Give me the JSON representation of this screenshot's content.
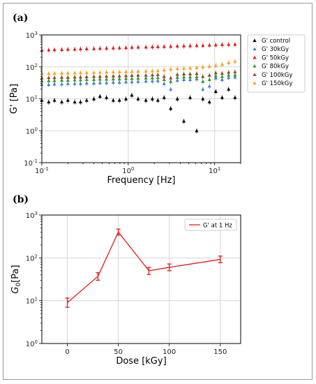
{
  "panel_a_label": "(a)",
  "panel_b_label": "(b)",
  "chart_data": [
    {
      "type": "scatter",
      "xlabel": "Frequency [Hz]",
      "ylabel": "G' [Pa]",
      "xscale": "log",
      "yscale": "log",
      "xlim": [
        0.1,
        20
      ],
      "ylim": [
        0.1,
        1000
      ],
      "xticks": [
        "10^-1",
        "10^0",
        "10^1"
      ],
      "yticks": [
        "10^-1",
        "10^0",
        "10^1",
        "10^2",
        "10^3"
      ],
      "grid": true,
      "legend_position": "right-outside",
      "series": [
        {
          "name": "G' control",
          "color": "#000000",
          "marker": "triangle",
          "x": [
            0.1,
            0.12,
            0.14,
            0.17,
            0.2,
            0.24,
            0.28,
            0.33,
            0.4,
            0.47,
            0.56,
            0.67,
            0.79,
            0.94,
            1.1,
            1.3,
            1.6,
            1.9,
            2.2,
            2.6,
            3.1,
            3.7,
            4.4,
            5.2,
            6.2,
            7.3,
            8.7,
            10.3,
            12.2,
            14.5,
            17.2
          ],
          "y": [
            9,
            8,
            9,
            8,
            9,
            8,
            8,
            9,
            10,
            12,
            11,
            9,
            9,
            10,
            13,
            10,
            9,
            10,
            9,
            11,
            5,
            10,
            2,
            11,
            1,
            10,
            8,
            17,
            11,
            20,
            11
          ]
        },
        {
          "name": "G' 30kGy",
          "color": "#4a7fd4",
          "marker": "triangle",
          "x": [
            0.1,
            0.12,
            0.14,
            0.17,
            0.2,
            0.24,
            0.28,
            0.33,
            0.4,
            0.47,
            0.56,
            0.67,
            0.79,
            0.94,
            1.1,
            1.3,
            1.6,
            1.9,
            2.2,
            2.6,
            3.1,
            3.7,
            4.4,
            5.2,
            6.2,
            7.3,
            8.7,
            10.3,
            12.2,
            14.5,
            17.2
          ],
          "y": [
            28,
            28,
            29,
            29,
            30,
            30,
            30,
            31,
            31,
            32,
            32,
            33,
            33,
            34,
            34,
            35,
            36,
            36,
            37,
            30,
            20,
            38,
            40,
            40,
            42,
            20,
            25,
            45,
            40,
            46,
            48
          ]
        },
        {
          "name": "G' 50kGy",
          "color": "#e41a1c",
          "marker": "triangle",
          "x": [
            0.1,
            0.12,
            0.14,
            0.17,
            0.2,
            0.24,
            0.28,
            0.33,
            0.4,
            0.47,
            0.56,
            0.67,
            0.79,
            0.94,
            1.1,
            1.3,
            1.6,
            1.9,
            2.2,
            2.6,
            3.1,
            3.7,
            4.4,
            5.2,
            6.2,
            7.3,
            8.7,
            10.3,
            12.2,
            14.5,
            17.2
          ],
          "y": [
            330,
            340,
            345,
            350,
            355,
            360,
            365,
            370,
            375,
            380,
            385,
            390,
            395,
            400,
            410,
            415,
            420,
            425,
            430,
            435,
            440,
            450,
            455,
            460,
            465,
            470,
            480,
            490,
            500,
            505,
            510
          ]
        },
        {
          "name": "G' 80kGy",
          "color": "#2ca02c",
          "marker": "triangle",
          "x": [
            0.1,
            0.12,
            0.14,
            0.17,
            0.2,
            0.24,
            0.28,
            0.33,
            0.4,
            0.47,
            0.56,
            0.67,
            0.79,
            0.94,
            1.1,
            1.3,
            1.6,
            1.9,
            2.2,
            2.6,
            3.1,
            3.7,
            4.4,
            5.2,
            6.2,
            7.3,
            8.7,
            10.3,
            12.2,
            14.5,
            17.2
          ],
          "y": [
            36,
            37,
            37,
            38,
            38,
            39,
            39,
            40,
            40,
            41,
            41,
            42,
            42,
            43,
            43,
            44,
            45,
            45,
            46,
            40,
            35,
            47,
            48,
            48,
            49,
            35,
            40,
            52,
            50,
            55,
            56
          ]
        },
        {
          "name": "G' 100kGy",
          "color": "#8b4a2b",
          "marker": "triangle",
          "x": [
            0.1,
            0.12,
            0.14,
            0.17,
            0.2,
            0.24,
            0.28,
            0.33,
            0.4,
            0.47,
            0.56,
            0.67,
            0.79,
            0.94,
            1.1,
            1.3,
            1.6,
            1.9,
            2.2,
            2.6,
            3.1,
            3.7,
            4.4,
            5.2,
            6.2,
            7.3,
            8.7,
            10.3,
            12.2,
            14.5,
            17.2
          ],
          "y": [
            45,
            46,
            46,
            47,
            47,
            48,
            48,
            49,
            50,
            50,
            51,
            52,
            52,
            53,
            54,
            55,
            55,
            56,
            57,
            50,
            45,
            58,
            60,
            60,
            62,
            50,
            55,
            65,
            63,
            68,
            70
          ]
        },
        {
          "name": "G' 150kGy",
          "color": "#ff9f1a",
          "marker": "triangle",
          "x": [
            0.1,
            0.12,
            0.14,
            0.17,
            0.2,
            0.24,
            0.28,
            0.33,
            0.4,
            0.47,
            0.56,
            0.67,
            0.79,
            0.94,
            1.1,
            1.3,
            1.6,
            1.9,
            2.2,
            2.6,
            3.1,
            3.7,
            4.4,
            5.2,
            6.2,
            7.3,
            8.7,
            10.3,
            12.2,
            14.5,
            17.2
          ],
          "y": [
            62,
            62,
            63,
            64,
            64,
            65,
            66,
            66,
            67,
            68,
            69,
            70,
            70,
            71,
            72,
            73,
            74,
            75,
            76,
            80,
            85,
            88,
            90,
            92,
            95,
            100,
            105,
            110,
            120,
            135,
            150
          ]
        }
      ]
    },
    {
      "type": "line",
      "xlabel": "Dose [kGy]",
      "ylabel": "G0[Pa]",
      "xscale": "linear",
      "yscale": "log",
      "xlim": [
        -25,
        170
      ],
      "ylim": [
        1,
        1000
      ],
      "xticks": [
        "0",
        "50",
        "100",
        "150"
      ],
      "yticks": [
        "10^0",
        "10^1",
        "10^2",
        "10^3"
      ],
      "grid": true,
      "legend_position": "top-right",
      "series": [
        {
          "name": "G' at 1 Hz",
          "color": "#e41a1c",
          "x": [
            0,
            30,
            50,
            80,
            100,
            150
          ],
          "y": [
            9,
            37,
            400,
            50,
            60,
            92
          ],
          "error_low": [
            7,
            30,
            340,
            41,
            50,
            77
          ],
          "error_high": [
            11.5,
            45,
            470,
            60,
            72,
            110
          ]
        }
      ]
    }
  ]
}
